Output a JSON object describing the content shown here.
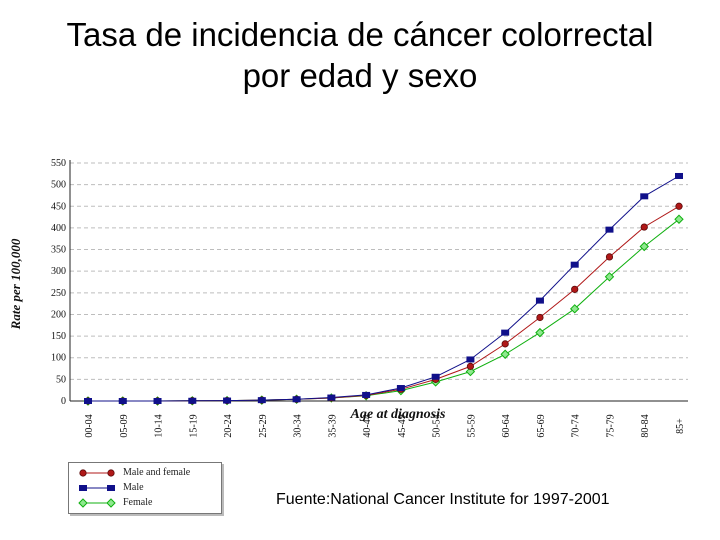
{
  "slide": {
    "title_line1": "Tasa de incidencia de cáncer colorrectal",
    "title_line2": "por edad y sexo",
    "source": "Fuente:National Cancer Institute for 1997-2001"
  },
  "chart_data": {
    "type": "line",
    "title": "",
    "xlabel": "Age at diagnosis",
    "ylabel": "Rate per 100,000",
    "categories": [
      "00-04",
      "05-09",
      "10-14",
      "15-19",
      "20-24",
      "25-29",
      "30-34",
      "35-39",
      "40-44",
      "45-49",
      "50-54",
      "55-59",
      "60-64",
      "65-69",
      "70-74",
      "75-79",
      "80-84",
      "85+"
    ],
    "ylim": [
      0,
      550
    ],
    "yticks": [
      0,
      50,
      100,
      150,
      200,
      250,
      300,
      350,
      400,
      450,
      500,
      550
    ],
    "grid": "horizontal dashed",
    "legend_position": "bottom-left",
    "series": [
      {
        "name": "Male and female",
        "color": "#b01818",
        "marker": "circle",
        "values": [
          0,
          0,
          0,
          0.5,
          1,
          2,
          4,
          7,
          13,
          27,
          50,
          80,
          132,
          193,
          258,
          333,
          402,
          450
        ]
      },
      {
        "name": "Male",
        "color": "#10108a",
        "marker": "square",
        "values": [
          0,
          0,
          0,
          0.5,
          1,
          2,
          4,
          8,
          14,
          30,
          56,
          96,
          158,
          232,
          315,
          396,
          473,
          520
        ]
      },
      {
        "name": "Female",
        "color": "#10b010",
        "marker": "diamond",
        "values": [
          0,
          0,
          0,
          0.5,
          1,
          2,
          4,
          7,
          12,
          24,
          44,
          68,
          108,
          158,
          213,
          287,
          357,
          420
        ]
      }
    ]
  }
}
